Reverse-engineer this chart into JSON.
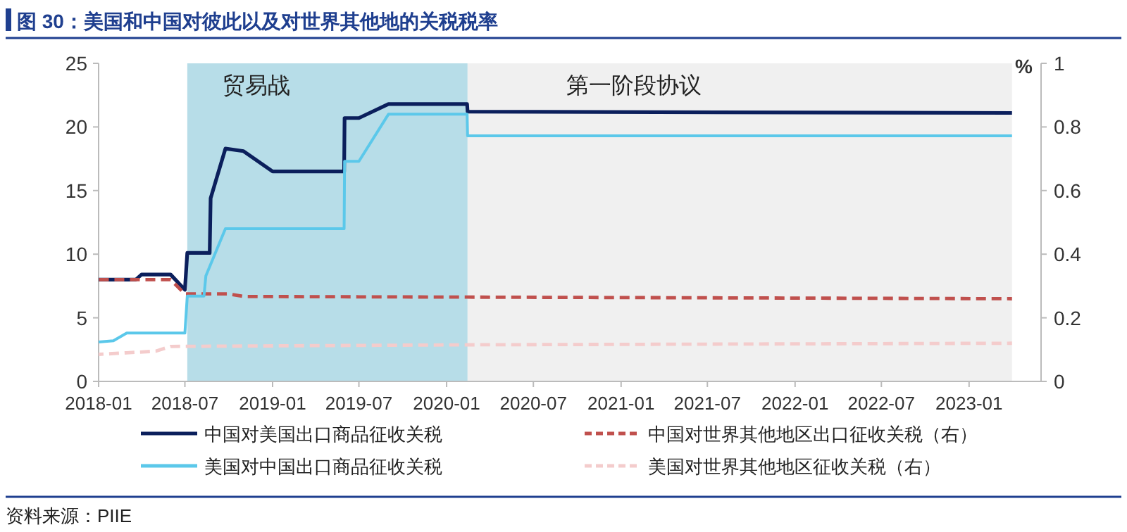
{
  "chart_data": {
    "type": "line",
    "title": "图 30：美国和中国对彼此以及对世界其他地的关税税率",
    "y2label": "%",
    "annotations": [
      "资料来源：PIIE"
    ],
    "xlim": [
      "2018-01-01",
      "2023-06-01"
    ],
    "xticks": [
      "2018-01",
      "2018-07",
      "2019-01",
      "2019-07",
      "2020-01",
      "2020-07",
      "2021-01",
      "2021-07",
      "2022-01",
      "2022-07",
      "2023-01"
    ],
    "ylim": [
      0,
      25
    ],
    "yticks": [
      0,
      5,
      10,
      15,
      20,
      25
    ],
    "y2lim": [
      0,
      1
    ],
    "y2ticks": [
      0,
      0.2,
      0.4,
      0.6,
      0.8,
      1
    ],
    "grid": false,
    "legend": "bottom",
    "marker": "none",
    "bands": [
      {
        "axis": "x",
        "from": "2018-07-06",
        "to": "2020-02-14",
        "label": "贸易战",
        "color": "#b7dde8"
      },
      {
        "axis": "x",
        "from": "2020-02-14",
        "to": "2023-04-01",
        "label": "第一阶段协议",
        "color": "#f0f0f0"
      }
    ],
    "series": [
      {
        "name": "中国对美国出口商品征收关税",
        "color": "#0b1f5c",
        "line_style": "solid",
        "x": [
          "2018-01-01",
          "2018-03-20",
          "2018-04-01",
          "2018-06-01",
          "2018-07-01",
          "2018-07-06",
          "2018-08-22",
          "2018-08-24",
          "2018-09-24",
          "2018-11-01",
          "2019-01-01",
          "2019-05-31",
          "2019-06-01",
          "2019-07-01",
          "2019-09-01",
          "2020-02-13",
          "2020-02-14",
          "2023-04-01"
        ],
        "values": [
          8.0,
          8.0,
          8.4,
          8.4,
          7.2,
          10.1,
          10.1,
          14.4,
          18.3,
          18.1,
          16.5,
          16.5,
          20.7,
          20.7,
          21.8,
          21.8,
          21.2,
          21.1
        ]
      },
      {
        "name": "中国对世界其他地区出口征收关税（右）",
        "color": "#c0504d",
        "line_style": "dashed",
        "axis": "y2",
        "x": [
          "2018-01-01",
          "2018-06-01",
          "2018-07-01",
          "2018-10-01",
          "2018-11-01",
          "2020-02-14",
          "2023-04-01"
        ],
        "values": [
          0.32,
          0.32,
          0.275,
          0.275,
          0.267,
          0.265,
          0.26
        ]
      },
      {
        "name": "美国对中国出口商品征收关税",
        "color": "#5bc8ea",
        "line_style": "solid",
        "x": [
          "2018-01-01",
          "2018-02-01",
          "2018-03-01",
          "2018-07-01",
          "2018-07-06",
          "2018-08-10",
          "2018-08-14",
          "2018-09-24",
          "2019-05-31",
          "2019-06-01",
          "2019-07-01",
          "2019-09-01",
          "2020-02-13",
          "2020-02-14",
          "2023-04-01"
        ],
        "values": [
          3.1,
          3.2,
          3.8,
          3.8,
          6.7,
          6.7,
          8.3,
          12.0,
          12.0,
          17.3,
          17.3,
          21.0,
          21.0,
          19.3,
          19.3
        ]
      },
      {
        "name": "美国对世界其他地区征收关税（右）",
        "color": "#f4cccc",
        "line_style": "dashed",
        "axis": "y2",
        "x": [
          "2018-01-01",
          "2018-03-01",
          "2018-05-01",
          "2018-06-01",
          "2020-02-14",
          "2023-04-01"
        ],
        "values": [
          0.085,
          0.09,
          0.095,
          0.11,
          0.115,
          0.12
        ]
      }
    ]
  }
}
